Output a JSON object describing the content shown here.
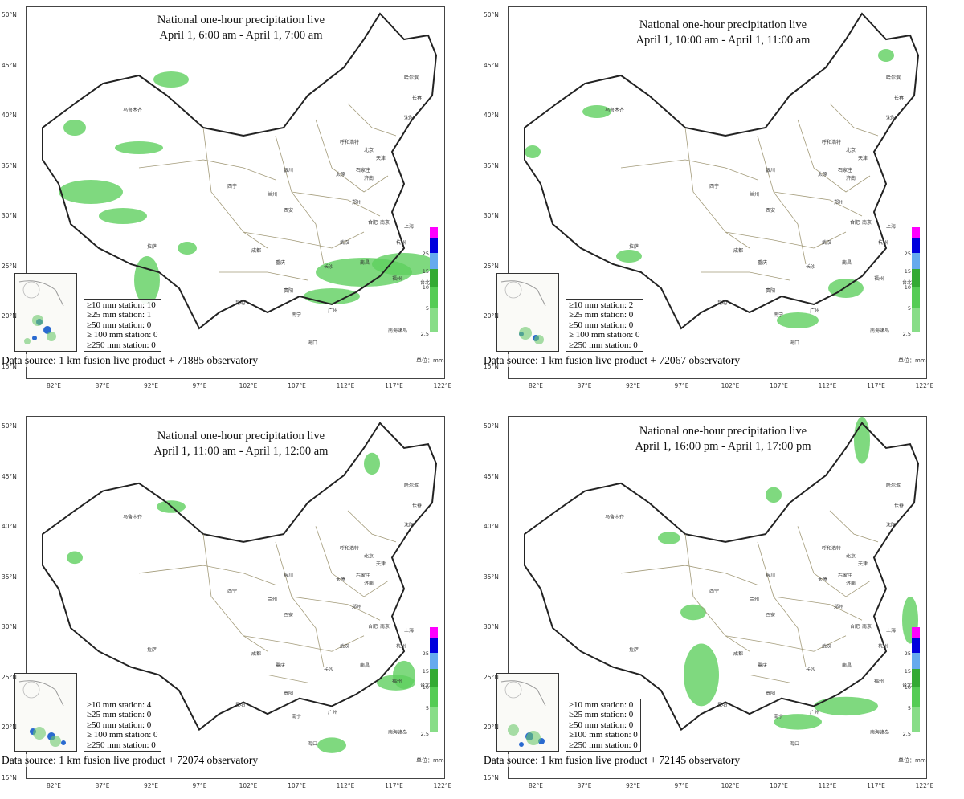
{
  "figure": {
    "lat_labels": [
      "50°N",
      "45°N",
      "40°N",
      "35°N",
      "30°N",
      "25°N",
      "20°N",
      "15°N"
    ],
    "lon_labels": [
      "82°E",
      "87°E",
      "92°E",
      "97°E",
      "102°E",
      "107°E",
      "112°E",
      "117°E",
      "122°E"
    ],
    "legend_ticks": [
      "25",
      "15",
      "10",
      "5",
      "2.5"
    ],
    "legend_unit": "单位：mm",
    "legend_colors": [
      "#ff00ff",
      "#0000dd",
      "#66aaee",
      "#33aa33",
      "#55cc55",
      "#88dd88"
    ],
    "cities": [
      "乌鲁木齐",
      "哈尔滨",
      "长春",
      "沈阳",
      "呼和浩特",
      "北京",
      "天津",
      "石家庄",
      "太原",
      "济南",
      "银川",
      "兰州",
      "西宁",
      "西安",
      "郑州",
      "南京",
      "上海",
      "合肥",
      "杭州",
      "武汉",
      "成都",
      "重庆",
      "拉萨",
      "长沙",
      "南昌",
      "福州",
      "贵阳",
      "昆明",
      "南宁",
      "广州",
      "台北",
      "海口",
      "南海诸岛"
    ]
  },
  "panels": [
    {
      "title_line1": "National one-hour precipitation live",
      "title_line2": "April 1, 6:00 am - April 1, 7:00 am",
      "stations": [
        "≥10 mm station: 10",
        "≥25 mm station: 1",
        "≥50 mm station: 0",
        "≥ 100 mm station: 0",
        "≥250 mm station: 0"
      ],
      "source": "Data source: 1 km fusion live product + 71885 observatory"
    },
    {
      "title_line1": "National one-hour precipitation live",
      "title_line2": "April 1, 10:00 am - April 1, 11:00 am",
      "stations": [
        "≥10 mm station: 2",
        "≥25 mm station: 0",
        "≥50 mm station: 0",
        "≥ 100 mm station: 0",
        "≥250 mm station: 0"
      ],
      "source": "Data source: 1 km fusion live product + 72067 observatory"
    },
    {
      "title_line1": "National one-hour precipitation live",
      "title_line2": "April 1, 11:00 am - April 1, 12:00 am",
      "stations": [
        "≥10 mm station: 4",
        "≥25 mm station: 0",
        "≥50 mm station: 0",
        "≥ 100 mm station: 0",
        "≥250 mm station: 0"
      ],
      "source": "Data source: 1 km fusion live product + 72074 observatory"
    },
    {
      "title_line1": "National one-hour precipitation live",
      "title_line2": "April 1, 16:00 pm - April 1, 17:00 pm",
      "stations": [
        "≥10 mm station: 0",
        "≥25 mm station: 0",
        "≥50 mm station: 0",
        "≥100 mm station: 0",
        "≥250 mm station: 0"
      ],
      "source": "Data source: 1 km fusion live product + 72145 observatory"
    }
  ]
}
